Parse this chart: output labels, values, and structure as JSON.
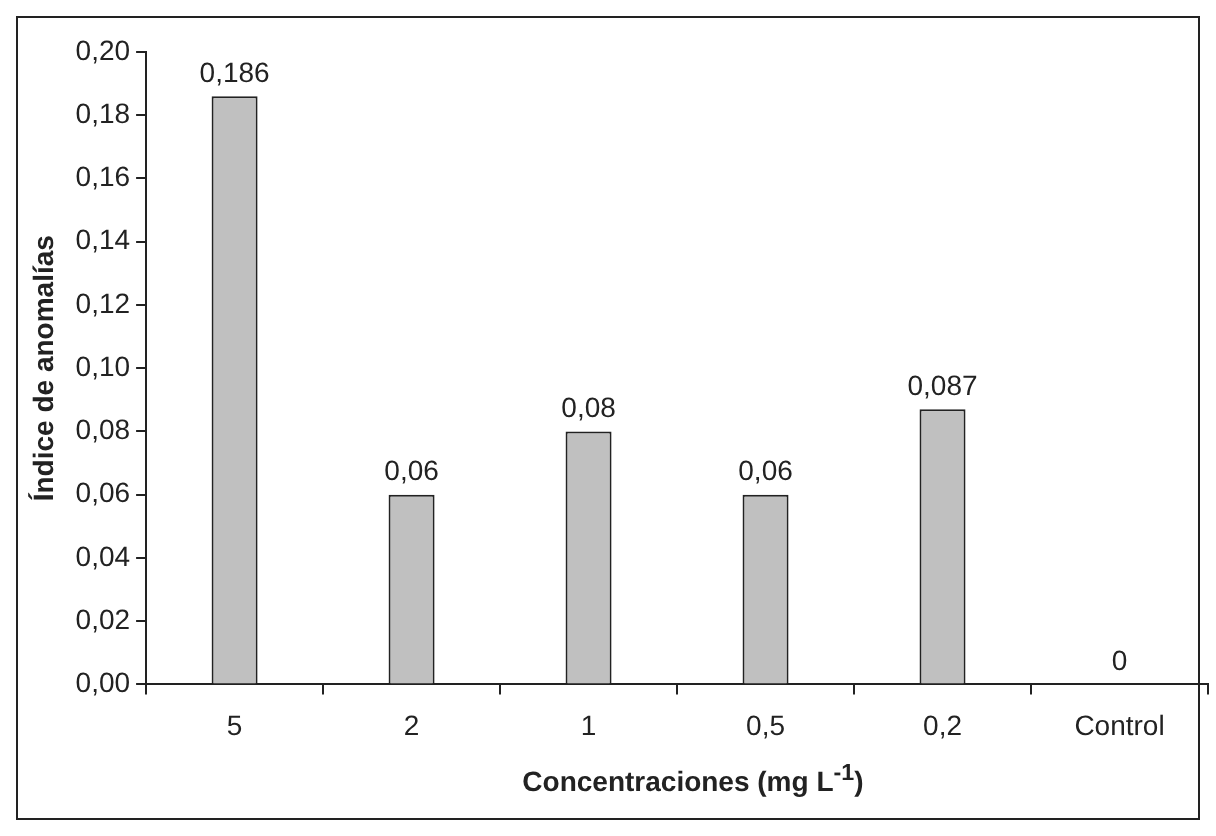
{
  "chart_data": {
    "type": "bar",
    "xlabel": "Concentraciones (mg L$^{-1}$)",
    "ylabel": "Índice de anomalías",
    "categories": [
      "5",
      "2",
      "1",
      "0,5",
      "0,2",
      "Control"
    ],
    "values": [
      0.186,
      0.06,
      0.08,
      0.06,
      0.087,
      0
    ],
    "value_labels": [
      "0,186",
      "0,06",
      "0,08",
      "0,06",
      "0,087",
      "0"
    ],
    "color": "#c0c0c0",
    "ylim": [
      0,
      0.2
    ],
    "yticks": [
      {
        "value": 0,
        "label": "0,00"
      },
      {
        "value": 0.02,
        "label": "0,02"
      },
      {
        "value": 0.04,
        "label": "0,04"
      },
      {
        "value": 0.06,
        "label": "0,06"
      },
      {
        "value": 0.08,
        "label": "0,08"
      },
      {
        "value": 0.1,
        "label": "0,10"
      },
      {
        "value": 0.12,
        "label": "0,12"
      },
      {
        "value": 0.14,
        "label": "0,14"
      },
      {
        "value": 0.16,
        "label": "0,16"
      },
      {
        "value": 0.18,
        "label": "0,18"
      },
      {
        "value": 0.2,
        "label": "0,20"
      }
    ],
    "grid": false,
    "legend": false
  }
}
